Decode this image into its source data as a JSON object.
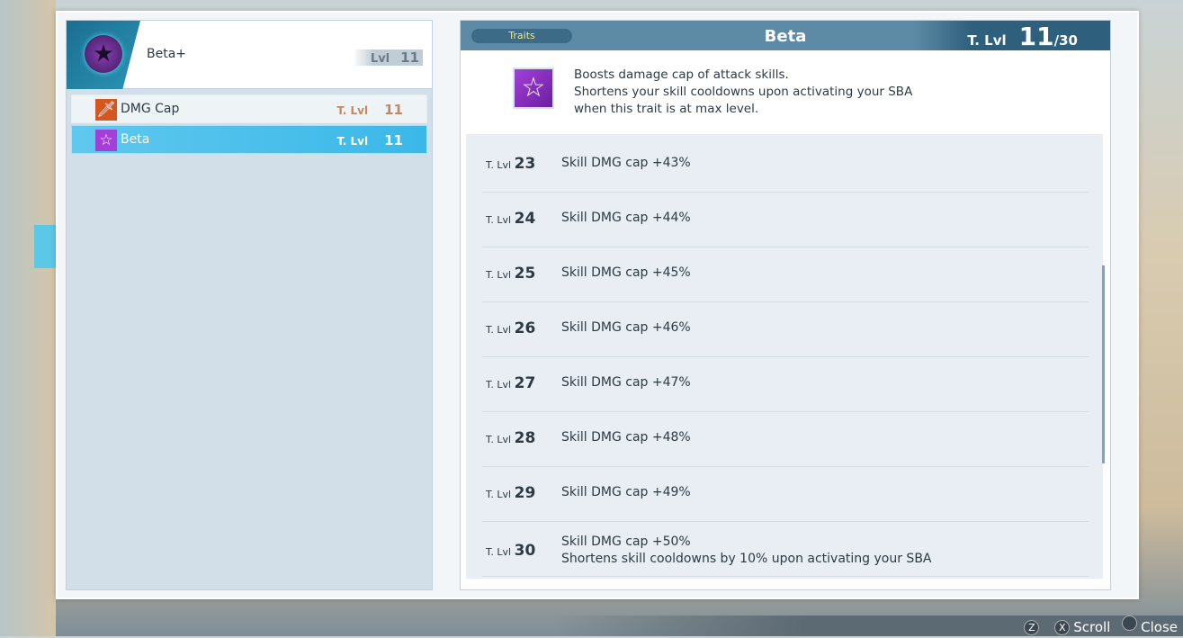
{
  "left": {
    "header": {
      "name": "Beta+",
      "lvl_label": "Lvl",
      "lvl": "11"
    },
    "items": [
      {
        "label": "DMG Cap",
        "tl_label": "T. Lvl",
        "lvl": "11",
        "icon": "sword-icon"
      },
      {
        "label": "Beta",
        "tl_label": "T. Lvl",
        "lvl": "11",
        "icon": "star-icon",
        "selected": true
      }
    ]
  },
  "right": {
    "tab": "Traits",
    "title": "Beta",
    "tl_label": "T. Lvl",
    "lvl": "11",
    "max": "/30",
    "desc": [
      "Boosts damage cap of attack skills.",
      "Shortens your skill cooldowns upon activating your SBA",
      "when this trait is at max level."
    ],
    "rows": [
      {
        "k": "T. Lvl",
        "n": "23",
        "v": [
          "Skill DMG cap +43%"
        ]
      },
      {
        "k": "T. Lvl",
        "n": "24",
        "v": [
          "Skill DMG cap +44%"
        ]
      },
      {
        "k": "T. Lvl",
        "n": "25",
        "v": [
          "Skill DMG cap +45%"
        ]
      },
      {
        "k": "T. Lvl",
        "n": "26",
        "v": [
          "Skill DMG cap +46%"
        ]
      },
      {
        "k": "T. Lvl",
        "n": "27",
        "v": [
          "Skill DMG cap +47%"
        ]
      },
      {
        "k": "T. Lvl",
        "n": "28",
        "v": [
          "Skill DMG cap +48%"
        ]
      },
      {
        "k": "T. Lvl",
        "n": "29",
        "v": [
          "Skill DMG cap +49%"
        ]
      },
      {
        "k": "T. Lvl",
        "n": "30",
        "v": [
          "Skill DMG cap +50%",
          "Shortens skill cooldowns by 10% upon activating your SBA"
        ]
      }
    ]
  },
  "footer": {
    "z": "Z",
    "x": "X",
    "scroll": "Scroll",
    "close": "Close"
  }
}
